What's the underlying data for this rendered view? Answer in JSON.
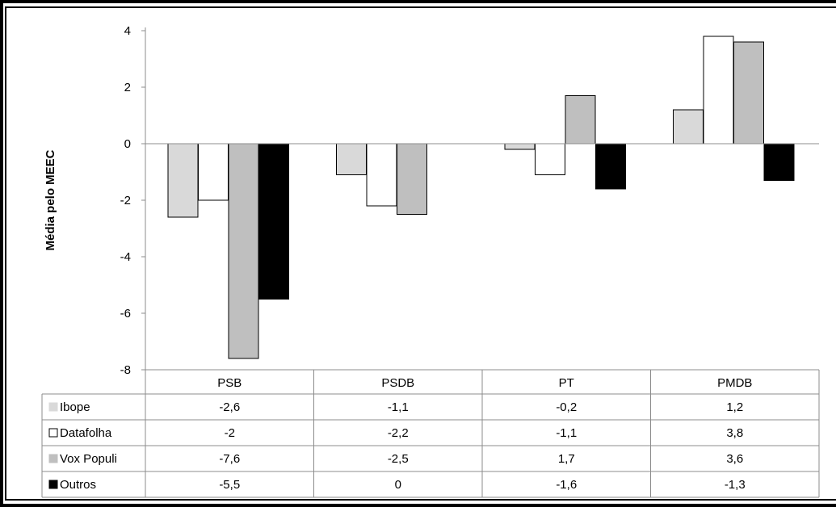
{
  "chart_data": {
    "type": "bar",
    "title": "",
    "ylabel": "Média pelo MEEC",
    "xlabel": "",
    "categories": [
      "PSB",
      "PSDB",
      "PT",
      "PMDB"
    ],
    "ylim": [
      -8,
      4
    ],
    "yticks": [
      "4",
      "2",
      "0",
      "-2",
      "-4",
      "-6",
      "-8"
    ],
    "ytick_values": [
      4,
      2,
      0,
      -2,
      -4,
      -6,
      -8
    ],
    "grid": false,
    "legend": "data-table-below",
    "series": [
      {
        "name": "Ibope",
        "color": "#d9d9d9",
        "values": [
          -2.6,
          -1.1,
          -0.2,
          1.2
        ],
        "labels": [
          "-2,6",
          "-1,1",
          "-0,2",
          "1,2"
        ]
      },
      {
        "name": "Datafolha",
        "color": "#ffffff",
        "values": [
          -2,
          -2.2,
          -1.1,
          3.8
        ],
        "labels": [
          "-2",
          "-2,2",
          "-1,1",
          "3,8"
        ]
      },
      {
        "name": "Vox Populi",
        "color": "#bfbfbf",
        "values": [
          -7.6,
          -2.5,
          1.7,
          3.6
        ],
        "labels": [
          "-7,6",
          "-2,5",
          "1,7",
          "3,6"
        ]
      },
      {
        "name": "Outros",
        "color": "#000000",
        "values": [
          -5.5,
          0,
          -1.6,
          -1.3
        ],
        "labels": [
          "-5,5",
          "0",
          "-1,6",
          "-1,3"
        ]
      }
    ]
  }
}
